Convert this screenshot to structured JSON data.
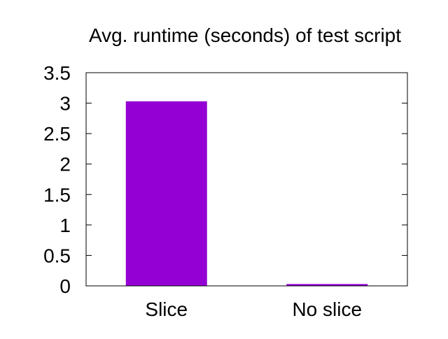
{
  "chart_data": {
    "type": "bar",
    "title": "Avg. runtime (seconds) of test script",
    "categories": [
      "Slice",
      "No slice"
    ],
    "values": [
      3.03,
      0.03
    ],
    "ylim": [
      0,
      3.5
    ],
    "yticks": [
      "0",
      "0.5",
      "1",
      "1.5",
      "2",
      "2.5",
      "3",
      "3.5"
    ],
    "bar_color": "#9400d3",
    "grid": false,
    "legend": "none"
  }
}
